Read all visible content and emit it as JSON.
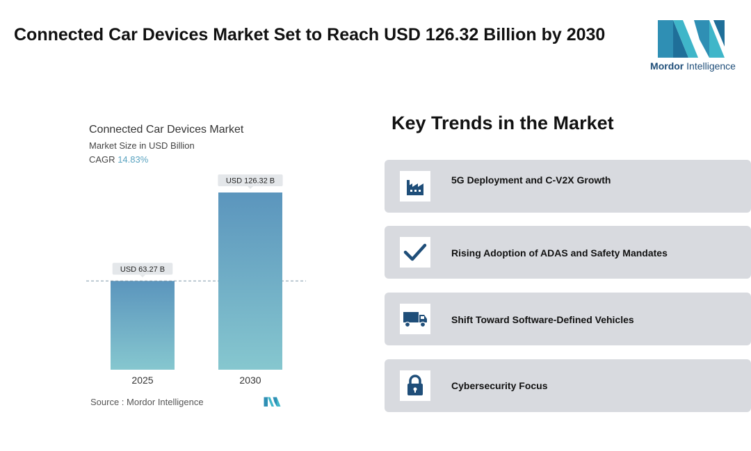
{
  "header": {
    "title": "Connected Car Devices Market Set to Reach USD 126.32 Billion by 2030",
    "brand": {
      "name_bold": "Mordor",
      "name_rest": " Intelligence",
      "color": "#3fb6c9"
    }
  },
  "chart_data": {
    "type": "bar",
    "title": "Connected Car Devices Market",
    "subtitle": "Market Size in USD Billion",
    "cagr_label": "CAGR",
    "cagr_value": "14.83%",
    "categories": [
      "2025",
      "2030"
    ],
    "values": [
      63.27,
      126.32
    ],
    "data_labels": [
      "USD 63.27 B",
      "USD 126.32 B"
    ],
    "ylim": [
      0,
      126.32
    ],
    "source": "Source :  Mordor Intelligence",
    "colors": {
      "bar_top": "#5b95bd",
      "bar_bottom": "#86c7cf"
    }
  },
  "trends": {
    "title": "Key Trends in the Market",
    "items": [
      {
        "label": "5G Deployment and C-V2X Growth",
        "icon": "factory-icon"
      },
      {
        "label": "Rising Adoption of ADAS and Safety Mandates",
        "icon": "checkmark-icon"
      },
      {
        "label": "Shift Toward Software-Defined Vehicles",
        "icon": "truck-icon"
      },
      {
        "label": "Cybersecurity Focus",
        "icon": "padlock-icon"
      }
    ],
    "icon_color": "#1f4e79"
  }
}
